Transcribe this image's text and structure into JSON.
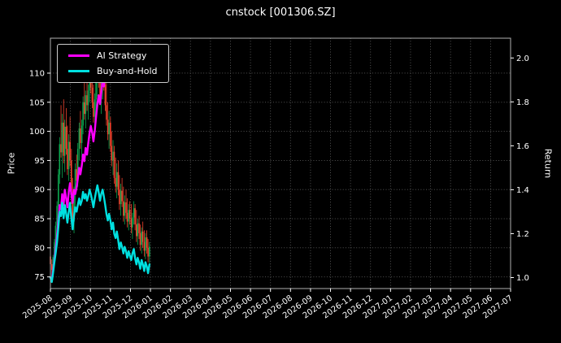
{
  "title": "cnstock [001306.SZ]",
  "colors": {
    "background": "#000000",
    "text": "#ffffff",
    "grid": "#5e5e5e",
    "border": "#b0b0b0",
    "ai_strategy": "#ff00ff",
    "buy_and_hold": "#00e0e0",
    "candle_up": "#0ca750",
    "candle_down": "#f4442e"
  },
  "chart_data": {
    "type": "candlestick_with_lines",
    "title": "cnstock [001306.SZ]",
    "grid": "dotted",
    "legend_position": "upper-left",
    "x_axis": {
      "unit": "months_from_2025-08",
      "tick_labels": [
        "2025-08",
        "2025-09",
        "2025-10",
        "2025-11",
        "2025-12",
        "2026-01",
        "2026-02",
        "2026-03",
        "2026-04",
        "2026-05",
        "2026-06",
        "2026-07",
        "2026-08",
        "2026-09",
        "2026-10",
        "2026-11",
        "2026-12",
        "2027-01",
        "2027-02",
        "2027-03",
        "2027-04",
        "2027-05",
        "2027-06",
        "2027-07"
      ]
    },
    "y_left": {
      "label": "Price",
      "ticks": [
        75,
        80,
        85,
        90,
        95,
        100,
        105,
        110
      ],
      "range": [
        73,
        116
      ]
    },
    "y_right": {
      "label": "Return",
      "ticks": [
        1.0,
        1.2,
        1.4,
        1.6,
        1.8,
        2.0
      ],
      "range": [
        0.95,
        2.09
      ]
    },
    "candles": {
      "columns": [
        "t_months_from_2025_08",
        "open",
        "high",
        "low",
        "close"
      ],
      "up_color": "#0ca750",
      "down_color": "#f4442e",
      "rows": [
        [
          0.0,
          78.5,
          79.2,
          76.8,
          77.2
        ],
        [
          0.07,
          77.2,
          78.0,
          75.2,
          76.2
        ],
        [
          0.13,
          76.2,
          78.8,
          75.8,
          78.4
        ],
        [
          0.2,
          78.4,
          81.5,
          77.9,
          81.0
        ],
        [
          0.26,
          81.0,
          84.5,
          80.2,
          83.8
        ],
        [
          0.33,
          83.8,
          88.0,
          83.0,
          87.2
        ],
        [
          0.4,
          87.2,
          93.5,
          86.5,
          92.6
        ],
        [
          0.46,
          92.6,
          99.0,
          91.0,
          97.8
        ],
        [
          0.53,
          97.8,
          104.5,
          95.5,
          96.4
        ],
        [
          0.59,
          96.4,
          103.0,
          92.0,
          101.5
        ],
        [
          0.66,
          101.5,
          105.5,
          94.5,
          95.8
        ],
        [
          0.72,
          95.8,
          102.0,
          93.0,
          100.8
        ],
        [
          0.79,
          100.8,
          104.0,
          96.0,
          97.0
        ],
        [
          0.85,
          97.0,
          101.0,
          92.5,
          93.5
        ],
        [
          0.92,
          93.5,
          99.5,
          91.5,
          98.2
        ],
        [
          0.98,
          98.2,
          102.5,
          94.0,
          95.0
        ],
        [
          1.05,
          95.0,
          97.0,
          87.5,
          88.5
        ],
        [
          1.11,
          88.5,
          92.0,
          83.5,
          84.5
        ],
        [
          1.18,
          84.5,
          90.5,
          82.5,
          89.5
        ],
        [
          1.24,
          89.5,
          94.5,
          87.0,
          93.5
        ],
        [
          1.31,
          93.5,
          96.0,
          90.0,
          91.5
        ],
        [
          1.37,
          91.5,
          98.0,
          90.5,
          97.0
        ],
        [
          1.44,
          97.0,
          101.5,
          95.0,
          100.5
        ],
        [
          1.5,
          100.5,
          103.5,
          97.0,
          98.0
        ],
        [
          1.57,
          98.0,
          102.0,
          95.5,
          101.0
        ],
        [
          1.63,
          101.0,
          106.0,
          99.5,
          105.0
        ],
        [
          1.7,
          105.0,
          108.5,
          102.0,
          103.0
        ],
        [
          1.76,
          103.0,
          107.0,
          100.5,
          106.2
        ],
        [
          1.83,
          106.2,
          109.0,
          103.5,
          104.5
        ],
        [
          1.89,
          104.5,
          108.0,
          102.0,
          107.0
        ],
        [
          1.96,
          107.0,
          110.5,
          105.0,
          108.8
        ],
        [
          2.02,
          108.8,
          111.5,
          106.5,
          107.5
        ],
        [
          2.09,
          107.5,
          110.0,
          104.0,
          105.0
        ],
        [
          2.15,
          105.0,
          108.0,
          101.5,
          102.5
        ],
        [
          2.22,
          102.5,
          106.5,
          100.0,
          105.5
        ],
        [
          2.28,
          105.5,
          109.5,
          103.0,
          108.5
        ],
        [
          2.35,
          108.5,
          112.5,
          106.0,
          111.0
        ],
        [
          2.41,
          111.0,
          113.0,
          107.5,
          108.5
        ],
        [
          2.48,
          108.5,
          111.0,
          104.5,
          105.5
        ],
        [
          2.54,
          105.5,
          109.0,
          103.0,
          107.8
        ],
        [
          2.61,
          107.8,
          112.0,
          105.5,
          110.5
        ],
        [
          2.67,
          110.5,
          112.8,
          107.0,
          108.0
        ],
        [
          2.74,
          108.0,
          110.5,
          103.5,
          104.5
        ],
        [
          2.8,
          104.5,
          108.5,
          101.0,
          102.0
        ],
        [
          2.87,
          102.0,
          105.0,
          98.5,
          99.5
        ],
        [
          2.93,
          99.5,
          103.5,
          97.0,
          101.5
        ],
        [
          3.0,
          101.5,
          102.5,
          96.5,
          97.5
        ],
        [
          3.06,
          97.5,
          100.0,
          94.0,
          95.0
        ],
        [
          3.13,
          95.0,
          98.5,
          92.5,
          96.5
        ],
        [
          3.19,
          96.5,
          97.5,
          91.0,
          92.0
        ],
        [
          3.26,
          92.0,
          95.5,
          89.5,
          90.5
        ],
        [
          3.32,
          90.5,
          94.5,
          88.5,
          93.0
        ],
        [
          3.39,
          93.0,
          95.0,
          89.0,
          90.0
        ],
        [
          3.45,
          90.0,
          92.5,
          86.5,
          87.5
        ],
        [
          3.52,
          87.5,
          91.0,
          85.5,
          89.8
        ],
        [
          3.58,
          89.8,
          92.0,
          87.0,
          88.0
        ],
        [
          3.65,
          88.0,
          90.5,
          84.5,
          85.5
        ],
        [
          3.71,
          85.5,
          89.0,
          84.0,
          87.8
        ],
        [
          3.78,
          87.8,
          90.0,
          85.0,
          86.0
        ],
        [
          3.84,
          86.0,
          88.5,
          83.5,
          84.5
        ],
        [
          3.91,
          84.5,
          87.5,
          83.0,
          86.5
        ],
        [
          3.97,
          86.5,
          88.0,
          84.0,
          85.0
        ],
        [
          4.04,
          85.0,
          87.5,
          82.5,
          83.5
        ],
        [
          4.1,
          83.5,
          86.0,
          81.5,
          85.2
        ],
        [
          4.17,
          85.2,
          88.0,
          84.0,
          86.8
        ],
        [
          4.23,
          86.8,
          87.5,
          83.0,
          84.0
        ],
        [
          4.3,
          84.0,
          86.5,
          81.0,
          82.0
        ],
        [
          4.36,
          82.0,
          85.0,
          80.5,
          84.2
        ],
        [
          4.43,
          84.2,
          85.5,
          81.5,
          82.5
        ],
        [
          4.49,
          82.5,
          84.0,
          79.5,
          80.5
        ],
        [
          4.56,
          80.5,
          83.5,
          79.0,
          82.8
        ],
        [
          4.62,
          82.8,
          84.5,
          80.0,
          81.0
        ],
        [
          4.69,
          81.0,
          83.0,
          78.5,
          79.5
        ],
        [
          4.75,
          79.5,
          82.5,
          78.0,
          81.8
        ],
        [
          4.82,
          81.8,
          83.0,
          79.0,
          80.0
        ],
        [
          4.88,
          80.0,
          81.5,
          77.5,
          78.5
        ],
        [
          4.95,
          78.5,
          81.0,
          77.0,
          80.2
        ]
      ]
    },
    "series": [
      {
        "name": "AI Strategy",
        "color": "#ff00ff",
        "axis": "right",
        "points": [
          [
            0.0,
            1.0
          ],
          [
            0.07,
            0.99
          ],
          [
            0.13,
            1.03
          ],
          [
            0.2,
            1.08
          ],
          [
            0.26,
            1.13
          ],
          [
            0.33,
            1.19
          ],
          [
            0.4,
            1.26
          ],
          [
            0.46,
            1.33
          ],
          [
            0.53,
            1.31
          ],
          [
            0.59,
            1.38
          ],
          [
            0.66,
            1.33
          ],
          [
            0.72,
            1.4
          ],
          [
            0.79,
            1.36
          ],
          [
            0.85,
            1.32
          ],
          [
            0.92,
            1.39
          ],
          [
            0.98,
            1.43
          ],
          [
            1.05,
            1.38
          ],
          [
            1.11,
            1.34
          ],
          [
            1.18,
            1.4
          ],
          [
            1.24,
            1.38
          ],
          [
            1.31,
            1.41
          ],
          [
            1.37,
            1.45
          ],
          [
            1.44,
            1.5
          ],
          [
            1.5,
            1.47
          ],
          [
            1.57,
            1.51
          ],
          [
            1.63,
            1.56
          ],
          [
            1.7,
            1.53
          ],
          [
            1.76,
            1.59
          ],
          [
            1.83,
            1.56
          ],
          [
            1.89,
            1.61
          ],
          [
            1.96,
            1.66
          ],
          [
            2.02,
            1.69
          ],
          [
            2.09,
            1.66
          ],
          [
            2.15,
            1.62
          ],
          [
            2.22,
            1.67
          ],
          [
            2.28,
            1.73
          ],
          [
            2.35,
            1.79
          ],
          [
            2.41,
            1.83
          ],
          [
            2.48,
            1.79
          ],
          [
            2.54,
            1.84
          ],
          [
            2.61,
            1.9
          ],
          [
            2.67,
            1.87
          ],
          [
            2.74,
            1.93
          ],
          [
            2.8,
            1.97
          ],
          [
            2.87,
            1.94
          ],
          [
            2.93,
            2.0
          ],
          [
            3.0,
            2.04
          ]
        ]
      },
      {
        "name": "Buy-and-Hold",
        "color": "#00e0e0",
        "axis": "right",
        "points": [
          [
            0.0,
            1.0
          ],
          [
            0.07,
            0.98
          ],
          [
            0.13,
            1.02
          ],
          [
            0.2,
            1.07
          ],
          [
            0.26,
            1.11
          ],
          [
            0.33,
            1.16
          ],
          [
            0.4,
            1.23
          ],
          [
            0.46,
            1.3
          ],
          [
            0.53,
            1.28
          ],
          [
            0.59,
            1.34
          ],
          [
            0.66,
            1.27
          ],
          [
            0.72,
            1.33
          ],
          [
            0.79,
            1.29
          ],
          [
            0.85,
            1.25
          ],
          [
            0.92,
            1.3
          ],
          [
            0.98,
            1.34
          ],
          [
            1.05,
            1.27
          ],
          [
            1.11,
            1.22
          ],
          [
            1.18,
            1.28
          ],
          [
            1.24,
            1.32
          ],
          [
            1.31,
            1.3
          ],
          [
            1.37,
            1.33
          ],
          [
            1.44,
            1.36
          ],
          [
            1.5,
            1.33
          ],
          [
            1.57,
            1.35
          ],
          [
            1.63,
            1.39
          ],
          [
            1.7,
            1.36
          ],
          [
            1.76,
            1.38
          ],
          [
            1.83,
            1.35
          ],
          [
            1.89,
            1.37
          ],
          [
            1.96,
            1.4
          ],
          [
            2.02,
            1.38
          ],
          [
            2.09,
            1.35
          ],
          [
            2.15,
            1.32
          ],
          [
            2.22,
            1.36
          ],
          [
            2.28,
            1.39
          ],
          [
            2.35,
            1.42
          ],
          [
            2.41,
            1.39
          ],
          [
            2.48,
            1.35
          ],
          [
            2.54,
            1.38
          ],
          [
            2.61,
            1.4
          ],
          [
            2.67,
            1.37
          ],
          [
            2.74,
            1.33
          ],
          [
            2.8,
            1.29
          ],
          [
            2.87,
            1.26
          ],
          [
            2.93,
            1.29
          ],
          [
            3.0,
            1.26
          ],
          [
            3.06,
            1.22
          ],
          [
            3.13,
            1.25
          ],
          [
            3.19,
            1.2
          ],
          [
            3.26,
            1.18
          ],
          [
            3.32,
            1.21
          ],
          [
            3.39,
            1.17
          ],
          [
            3.45,
            1.13
          ],
          [
            3.52,
            1.16
          ],
          [
            3.58,
            1.14
          ],
          [
            3.65,
            1.11
          ],
          [
            3.71,
            1.14
          ],
          [
            3.78,
            1.12
          ],
          [
            3.84,
            1.09
          ],
          [
            3.91,
            1.12
          ],
          [
            3.97,
            1.1
          ],
          [
            4.04,
            1.08
          ],
          [
            4.1,
            1.11
          ],
          [
            4.17,
            1.13
          ],
          [
            4.23,
            1.09
          ],
          [
            4.3,
            1.06
          ],
          [
            4.36,
            1.09
          ],
          [
            4.43,
            1.07
          ],
          [
            4.49,
            1.04
          ],
          [
            4.56,
            1.08
          ],
          [
            4.62,
            1.06
          ],
          [
            4.69,
            1.03
          ],
          [
            4.75,
            1.07
          ],
          [
            4.82,
            1.05
          ],
          [
            4.88,
            1.02
          ],
          [
            4.95,
            1.06
          ]
        ]
      }
    ]
  }
}
